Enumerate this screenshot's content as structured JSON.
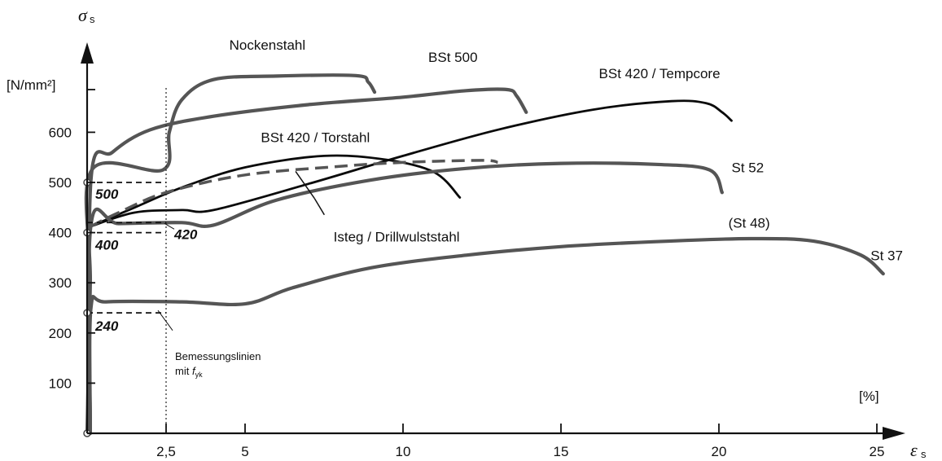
{
  "chart_data": {
    "type": "line",
    "title": "",
    "x_axis": {
      "symbol": "ε",
      "subscript": "s",
      "unit": "[%]",
      "ticks": [
        "2,5",
        "5",
        "10",
        "15",
        "20",
        "25"
      ],
      "tick_values": [
        2.5,
        5,
        10,
        15,
        20,
        25
      ],
      "range": [
        0,
        26
      ]
    },
    "y_axis": {
      "symbol": "σ",
      "subscript": "s",
      "unit": "[N/mm²]",
      "ticks": [
        "100",
        "200",
        "300",
        "400",
        "500",
        "600"
      ],
      "tick_values": [
        100,
        200,
        300,
        400,
        500,
        600
      ],
      "range": [
        0,
        790
      ]
    },
    "series": [
      {
        "name": "Nockenstahl",
        "style": "gray-thick",
        "label_at": [
          4.5,
          765
        ],
        "points": [
          [
            0,
            0
          ],
          [
            0.1,
            300
          ],
          [
            0.15,
            525
          ],
          [
            2.4,
            525
          ],
          [
            2.6,
            600
          ],
          [
            3.0,
            665
          ],
          [
            4,
            705
          ],
          [
            6,
            712
          ],
          [
            8.5,
            713
          ],
          [
            8.9,
            700
          ],
          [
            9.1,
            680
          ]
        ]
      },
      {
        "name": "BSt 500",
        "style": "gray-thick",
        "label_at": [
          10.8,
          740
        ],
        "points": [
          [
            0.1,
            0
          ],
          [
            0.12,
            505
          ],
          [
            0.8,
            560
          ],
          [
            2,
            605
          ],
          [
            4,
            632
          ],
          [
            7,
            655
          ],
          [
            10,
            670
          ],
          [
            12,
            683
          ],
          [
            13.3,
            685
          ],
          [
            13.6,
            672
          ],
          [
            13.9,
            640
          ]
        ]
      },
      {
        "name": "BSt 420 / Tempcore",
        "style": "black",
        "label_at": [
          16.2,
          708
        ],
        "points": [
          [
            0.1,
            412
          ],
          [
            1.5,
            440
          ],
          [
            3,
            445
          ],
          [
            4,
            445
          ],
          [
            7,
            497
          ],
          [
            10,
            553
          ],
          [
            13,
            605
          ],
          [
            16,
            645
          ],
          [
            18.5,
            662
          ],
          [
            19.6,
            658
          ],
          [
            20.1,
            640
          ],
          [
            20.4,
            623
          ]
        ]
      },
      {
        "name": "BSt 420 / Torstahl",
        "style": "black",
        "label_at": [
          5.5,
          580
        ],
        "points": [
          [
            0.1,
            412
          ],
          [
            1.5,
            450
          ],
          [
            3,
            490
          ],
          [
            5,
            530
          ],
          [
            7.5,
            553
          ],
          [
            9.5,
            545
          ],
          [
            11,
            520
          ],
          [
            11.8,
            470
          ]
        ]
      },
      {
        "name": "Isteg / Drillwulststahl",
        "style": "dashed",
        "label_at": [
          7.8,
          382
        ],
        "points": [
          [
            0.1,
            412
          ],
          [
            1,
            440
          ],
          [
            2.5,
            480
          ],
          [
            5,
            515
          ],
          [
            8,
            532
          ],
          [
            10,
            540
          ],
          [
            12.5,
            544
          ],
          [
            13,
            540
          ]
        ]
      },
      {
        "name": "St 52",
        "style": "gray-thick",
        "label_at": [
          20.4,
          520
        ],
        "points": [
          [
            0.1,
            0
          ],
          [
            0.12,
            415
          ],
          [
            1,
            418
          ],
          [
            3,
            420
          ],
          [
            4,
            415
          ],
          [
            6,
            465
          ],
          [
            9,
            505
          ],
          [
            12,
            528
          ],
          [
            15,
            538
          ],
          [
            18,
            536
          ],
          [
            19.7,
            525
          ],
          [
            20.1,
            480
          ]
        ]
      },
      {
        "name": "(St 48)",
        "style": "label-only",
        "label_at": [
          20.3,
          410
        ],
        "points": []
      },
      {
        "name": "St 37",
        "style": "gray-thick",
        "label_at": [
          24.8,
          345
        ],
        "points": [
          [
            0.1,
            0
          ],
          [
            0.12,
            250
          ],
          [
            0.6,
            262
          ],
          [
            3,
            262
          ],
          [
            5,
            258
          ],
          [
            6.5,
            290
          ],
          [
            9,
            330
          ],
          [
            12,
            355
          ],
          [
            15,
            372
          ],
          [
            18,
            382
          ],
          [
            21,
            388
          ],
          [
            23,
            383
          ],
          [
            24.5,
            355
          ],
          [
            25.2,
            318
          ]
        ]
      }
    ],
    "design_lines": [
      {
        "label": "500",
        "value": 500,
        "x_end": 2.5
      },
      {
        "label": "420",
        "value": 420,
        "x_end": 2.5
      },
      {
        "label": "400",
        "value": 400,
        "x_end": 2.5
      },
      {
        "label": "240",
        "value": 240,
        "x_end": 2.5
      }
    ],
    "vertical_reference": {
      "x": 2.5,
      "style": "dotted"
    },
    "annotation": {
      "line1": "Bemessungslinien",
      "line2_prefix": "mit ",
      "line2_symbol": "f",
      "line2_sub": "yk"
    }
  }
}
